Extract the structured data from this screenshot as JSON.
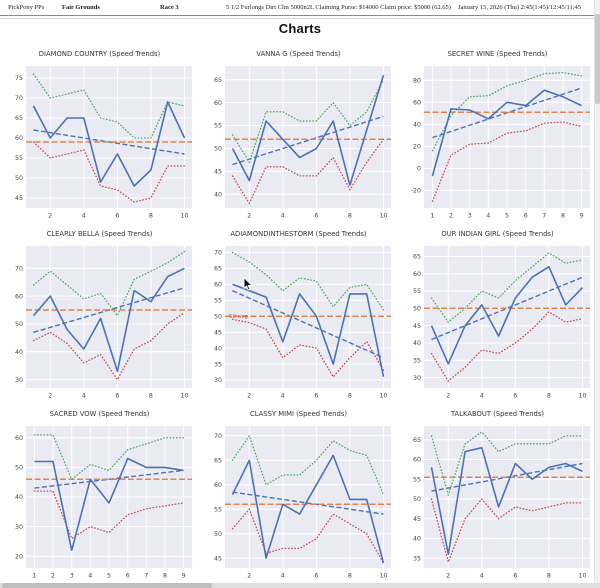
{
  "header": {
    "app": "PickPony PPs",
    "track": "Fair Grounds",
    "race": "Race 3",
    "conditions": "5 1/2 Furlongs Dirt Clm 5000n2L Claiming Purse: $14000 Claim price: $5000 (62.65)",
    "datetime": "January 15, 2026 (Thu) 2:45(1:45)/12:45/11:45"
  },
  "page_title": "Charts",
  "style": {
    "speed_line": "#4c72b0",
    "trend_line": "#4c72b0",
    "average_line": "#dd8452",
    "upper_band": "#55a868",
    "lower_band": "#c44e52",
    "plot_background": "#eaeaf2",
    "gridline": "#ffffff"
  },
  "chart_data": [
    {
      "type": "line",
      "title": "DIAMOND COUNTRY (Speed Trends)",
      "x": [
        1,
        2,
        3,
        4,
        5,
        6,
        7,
        8,
        9,
        10
      ],
      "xticks": [
        2,
        4,
        6,
        8,
        10
      ],
      "yticks": [
        45,
        50,
        55,
        60,
        65,
        70,
        75
      ],
      "ylim": [
        42.5,
        78
      ],
      "speed": [
        68,
        60,
        65,
        65,
        49,
        56,
        48,
        52,
        69,
        60
      ],
      "upper": [
        76,
        70,
        71,
        72,
        65,
        64,
        60,
        60,
        69,
        68
      ],
      "lower": [
        59,
        55,
        56,
        57,
        48,
        47,
        44,
        45,
        53,
        53
      ],
      "average": 59,
      "trend": [
        62,
        56
      ],
      "legend": "none"
    },
    {
      "type": "line",
      "title": "VANNA G (Speed Trends)",
      "x": [
        1,
        2,
        3,
        4,
        5,
        6,
        7,
        8,
        9,
        10
      ],
      "xticks": [
        2,
        4,
        6,
        8,
        10
      ],
      "yticks": [
        40,
        45,
        50,
        55,
        60,
        65
      ],
      "ylim": [
        37,
        68
      ],
      "speed": [
        50,
        43,
        56,
        52,
        48,
        50,
        56,
        42,
        54,
        66
      ],
      "upper": [
        53,
        47,
        58,
        58,
        56,
        56,
        60,
        55,
        58,
        65
      ],
      "lower": [
        44,
        38,
        46,
        46,
        44,
        44,
        48,
        41,
        47,
        52
      ],
      "average": 52,
      "trend": [
        46.5,
        57
      ],
      "legend": "none"
    },
    {
      "type": "line",
      "title": "SECRET WINE (Speed Trends)",
      "x": [
        1,
        2,
        3,
        4,
        5,
        6,
        7,
        8,
        9
      ],
      "xticks": [
        1,
        2,
        3,
        4,
        5,
        6,
        7,
        8,
        9
      ],
      "yticks": [
        -20,
        0,
        20,
        40,
        60,
        80
      ],
      "ylim": [
        -36,
        93
      ],
      "speed": [
        -7,
        54,
        53,
        45,
        60,
        57,
        71,
        65,
        57
      ],
      "upper": [
        16,
        48,
        65,
        66,
        75,
        80,
        86,
        87,
        84
      ],
      "lower": [
        -30,
        12,
        22,
        23,
        32,
        34,
        41,
        42,
        38
      ],
      "average": 51,
      "trend": [
        28,
        73
      ],
      "legend": "none"
    },
    {
      "type": "line",
      "title": "CLEARLY BELLA (Speed Trends)",
      "x": [
        1,
        2,
        3,
        4,
        5,
        6,
        7,
        8,
        9,
        10
      ],
      "xticks": [
        2,
        4,
        6,
        8,
        10
      ],
      "yticks": [
        30,
        40,
        50,
        60,
        70
      ],
      "ylim": [
        27,
        78
      ],
      "speed": [
        53,
        60,
        48,
        41,
        52,
        33,
        62,
        58,
        67,
        70
      ],
      "upper": [
        64,
        69,
        64,
        59,
        61,
        53,
        66,
        69,
        72,
        76
      ],
      "lower": [
        44,
        47,
        43,
        36,
        39,
        30,
        41,
        44,
        50,
        54
      ],
      "average": 55,
      "trend": [
        47,
        63
      ],
      "legend": "none"
    },
    {
      "type": "line",
      "title": "ADIAMONDINTHESTORM (Speed Trends)",
      "x": [
        1,
        2,
        3,
        4,
        5,
        6,
        7,
        8,
        9,
        10
      ],
      "xticks": [
        2,
        4,
        6,
        8,
        10
      ],
      "yticks": [
        30,
        35,
        40,
        45,
        50,
        55,
        60,
        65,
        70
      ],
      "ylim": [
        27.5,
        72
      ],
      "speed": [
        60,
        58,
        56,
        42,
        57,
        50,
        35,
        57,
        57,
        31
      ],
      "upper": [
        70,
        67,
        63,
        58,
        62,
        61,
        53,
        59,
        60,
        52
      ],
      "lower": [
        49,
        48,
        46,
        37,
        41,
        40,
        31,
        37,
        42,
        33
      ],
      "average": 50,
      "average_label": "50 avg",
      "trend": [
        58,
        37
      ],
      "legend": "none"
    },
    {
      "type": "line",
      "title": "OUR INDIAN GIRL (Speed Trends)",
      "x": [
        1,
        2,
        3,
        4,
        5,
        6,
        7,
        8,
        9,
        10
      ],
      "xticks": [
        2,
        4,
        6,
        8,
        10
      ],
      "yticks": [
        30,
        35,
        40,
        45,
        50,
        55,
        60,
        65
      ],
      "ylim": [
        27,
        68
      ],
      "speed": [
        45,
        34,
        45,
        51,
        42,
        53,
        59,
        62,
        51,
        56
      ],
      "upper": [
        53,
        46,
        50,
        55,
        53,
        58,
        62,
        66,
        63,
        64
      ],
      "lower": [
        37,
        29,
        33,
        38,
        37,
        40,
        44,
        49,
        46,
        47
      ],
      "average": 50,
      "trend": [
        41,
        59
      ],
      "legend": "none"
    },
    {
      "type": "line",
      "title": "SACRED VOW (Speed Trends)",
      "x": [
        1,
        2,
        3,
        4,
        5,
        6,
        7,
        8,
        9
      ],
      "xticks": [
        1,
        2,
        3,
        4,
        5,
        6,
        7,
        8,
        9
      ],
      "yticks": [
        20,
        30,
        40,
        50,
        60
      ],
      "ylim": [
        16,
        64
      ],
      "speed": [
        52,
        52,
        22,
        46,
        38,
        53,
        50,
        50,
        49
      ],
      "upper": [
        61,
        61,
        46,
        51,
        49,
        56,
        58,
        60,
        60
      ],
      "lower": [
        42,
        42,
        26,
        30,
        28,
        34,
        36,
        37,
        38
      ],
      "average": 46,
      "trend": [
        43,
        49
      ],
      "legend": "none"
    },
    {
      "type": "line",
      "title": "CLASSY MIMI (Speed Trends)",
      "x": [
        1,
        2,
        3,
        4,
        5,
        6,
        7,
        8,
        9,
        10
      ],
      "xticks": [
        2,
        4,
        6,
        8,
        10
      ],
      "yticks": [
        45,
        50,
        55,
        60,
        65,
        70
      ],
      "ylim": [
        43,
        72
      ],
      "speed": [
        58,
        65,
        45,
        56,
        54,
        60,
        66,
        57,
        57,
        44
      ],
      "upper": [
        65,
        70,
        60,
        62,
        62,
        65,
        69,
        67,
        66,
        58
      ],
      "lower": [
        51,
        55,
        46,
        47,
        47,
        49,
        54,
        52,
        50,
        44
      ],
      "average": 56,
      "trend": [
        58.5,
        54
      ],
      "legend": "none"
    },
    {
      "type": "line",
      "title": "TALKABOUT (Speed Trends)",
      "x": [
        1,
        2,
        3,
        4,
        5,
        6,
        7,
        8,
        9,
        10
      ],
      "xticks": [
        2,
        4,
        6,
        8,
        10
      ],
      "yticks": [
        35,
        40,
        45,
        50,
        55,
        60,
        65
      ],
      "ylim": [
        32.5,
        68.5
      ],
      "speed": [
        58,
        36,
        62,
        63,
        48,
        59,
        55,
        58,
        59,
        57
      ],
      "upper": [
        66,
        51,
        64,
        67,
        62,
        64,
        64,
        64,
        66,
        66
      ],
      "lower": [
        50,
        34,
        45,
        50,
        45,
        48,
        47,
        48,
        49,
        49
      ],
      "average": 55.5,
      "trend": [
        52,
        59
      ],
      "legend": "none"
    }
  ]
}
